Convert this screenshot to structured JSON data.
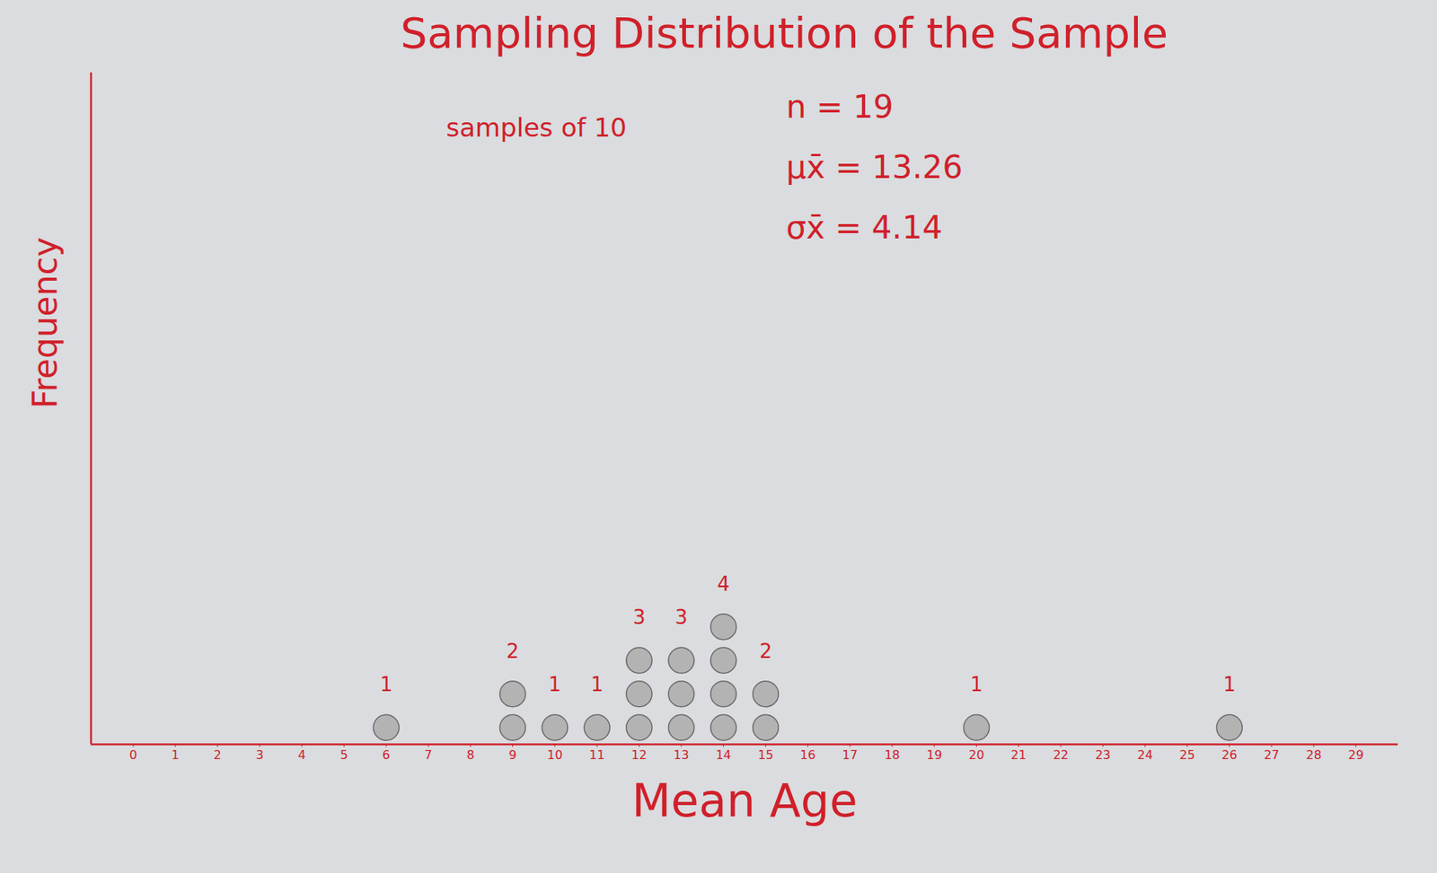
{
  "chart_data": {
    "type": "dot",
    "title": "Sampling Distribution of the Sample",
    "annotations": [
      "samples of 10",
      "n = 19",
      "μx̄ = 13.26",
      "σx̄ = 4.14"
    ],
    "x_label": "Mean Age",
    "y_label": "Frequency",
    "x": [
      6,
      9,
      10,
      11,
      12,
      13,
      14,
      15,
      20,
      26
    ],
    "values": [
      1,
      2,
      1,
      1,
      3,
      3,
      4,
      2,
      1,
      1
    ],
    "xlim": [
      -1,
      30
    ],
    "xticks": [
      0,
      1,
      2,
      3,
      4,
      5,
      6,
      7,
      8,
      9,
      10,
      11,
      12,
      13,
      14,
      15,
      16,
      17,
      18,
      19,
      20,
      21,
      22,
      23,
      24,
      25,
      26,
      27,
      28,
      29
    ],
    "ylim": [
      0,
      20
    ],
    "color": "#b3b3b3",
    "data_labels": true,
    "tick_labels": "x",
    "grid": false
  }
}
